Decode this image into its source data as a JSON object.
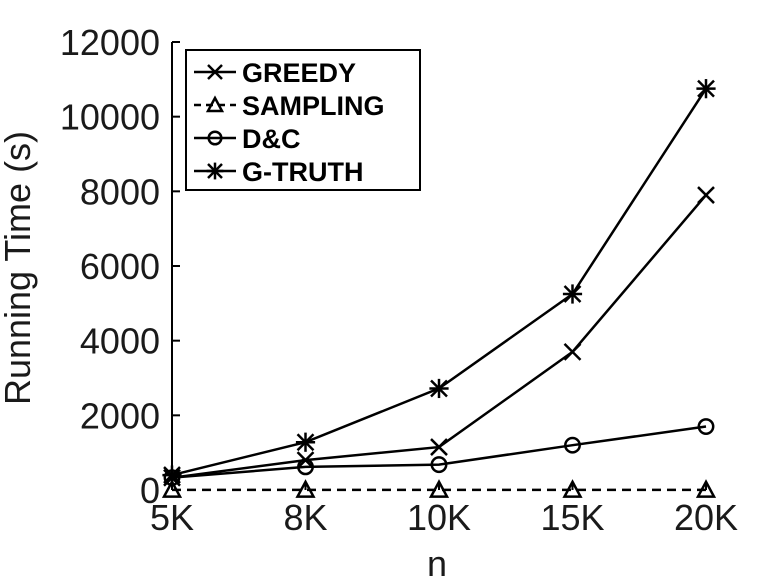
{
  "chart_data": {
    "type": "line",
    "title": "",
    "xlabel": "n",
    "ylabel": "Running Time (s)",
    "categories": [
      "5K",
      "8K",
      "10K",
      "15K",
      "20K"
    ],
    "ylim": [
      0,
      12000
    ],
    "yticks": [
      0,
      2000,
      4000,
      6000,
      8000,
      10000,
      12000
    ],
    "grid": false,
    "legend_position": "top-left",
    "series": [
      {
        "name": "GREEDY",
        "marker": "x",
        "dash": "solid",
        "color": "#000000",
        "values": [
          330,
          800,
          1150,
          3700,
          7900
        ]
      },
      {
        "name": "SAMPLING",
        "marker": "triangle",
        "dash": "dashed",
        "color": "#000000",
        "values": [
          5,
          5,
          5,
          5,
          5
        ]
      },
      {
        "name": "D&C",
        "marker": "circle",
        "dash": "solid",
        "color": "#000000",
        "values": [
          330,
          620,
          680,
          1200,
          1700
        ]
      },
      {
        "name": "G-TRUTH",
        "marker": "star",
        "dash": "solid",
        "color": "#000000",
        "values": [
          400,
          1280,
          2720,
          5250,
          10750
        ]
      }
    ]
  }
}
